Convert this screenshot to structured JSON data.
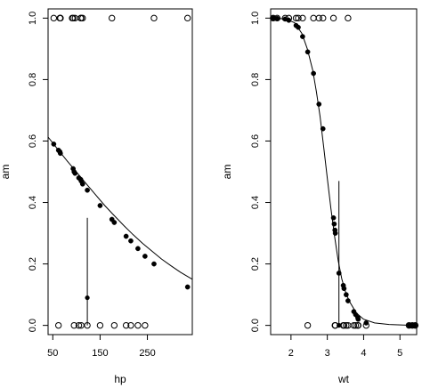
{
  "chart_data": [
    {
      "type": "scatter",
      "title": "",
      "xlabel": "hp",
      "ylabel": "am",
      "xlim": [
        50,
        335
      ],
      "ylim": [
        0,
        1
      ],
      "xticks": [
        50,
        150,
        250
      ],
      "yticks": [
        0.0,
        0.2,
        0.4,
        0.6,
        0.8,
        1.0
      ],
      "observed": {
        "x": [
          93,
          110,
          113,
          66,
          52,
          65,
          66,
          91,
          175,
          264,
          335,
          109,
          97,
          95,
          62,
          105,
          123,
          150,
          180,
          205,
          215,
          230,
          245,
          110
        ],
        "y": [
          1,
          1,
          1,
          1,
          1,
          1,
          1,
          1,
          1,
          1,
          1,
          1,
          1,
          0,
          0,
          0,
          0,
          0,
          0,
          0,
          0,
          0,
          0,
          0
        ]
      },
      "fitted": {
        "x": [
          52,
          62,
          65,
          66,
          93,
          95,
          97,
          105,
          109,
          110,
          113,
          123,
          150,
          175,
          180,
          205,
          215,
          230,
          245,
          264,
          335
        ],
        "y": [
          0.59,
          0.57,
          0.565,
          0.56,
          0.51,
          0.5,
          0.495,
          0.48,
          0.475,
          0.47,
          0.46,
          0.44,
          0.39,
          0.345,
          0.335,
          0.29,
          0.275,
          0.25,
          0.225,
          0.2,
          0.125
        ]
      },
      "curve": {
        "x": [
          40,
          60,
          80,
          100,
          120,
          140,
          160,
          180,
          200,
          220,
          240,
          260,
          280,
          300,
          320,
          345
        ],
        "y": [
          0.613,
          0.574,
          0.536,
          0.499,
          0.462,
          0.426,
          0.39,
          0.357,
          0.325,
          0.295,
          0.267,
          0.241,
          0.216,
          0.194,
          0.173,
          0.15
        ]
      },
      "marker": {
        "x": 123,
        "y": 0.09,
        "line_top": 0.35
      }
    },
    {
      "type": "scatter",
      "title": "",
      "xlabel": "wt",
      "ylabel": "am",
      "xlim": [
        1.5,
        5.4
      ],
      "ylim": [
        0,
        1
      ],
      "xticks": [
        2,
        3,
        4,
        5
      ],
      "yticks": [
        0.0,
        0.2,
        0.4,
        0.6,
        0.8,
        1.0
      ],
      "observed": {
        "x": [
          1.51,
          1.62,
          1.84,
          1.94,
          2.14,
          2.2,
          2.32,
          2.62,
          2.77,
          2.88,
          3.17,
          3.57,
          2.46,
          3.22,
          3.21,
          3.44,
          3.46,
          3.52,
          3.57,
          3.73,
          3.78,
          3.84,
          3.85,
          4.07,
          5.25,
          5.34,
          5.42
        ],
        "y": [
          1,
          1,
          1,
          1,
          1,
          1,
          1,
          1,
          1,
          1,
          1,
          1,
          0,
          0,
          0,
          0,
          0,
          0,
          0,
          0,
          0,
          0,
          0,
          0,
          0,
          0,
          0
        ]
      },
      "fitted": {
        "x": [
          1.51,
          1.62,
          1.84,
          1.94,
          2.14,
          2.2,
          2.32,
          2.46,
          2.62,
          2.77,
          2.88,
          3.17,
          3.19,
          3.21,
          3.22,
          3.32,
          3.44,
          3.46,
          3.52,
          3.57,
          3.73,
          3.78,
          3.84,
          3.85,
          4.07,
          5.25,
          5.34,
          5.42
        ],
        "y": [
          1.0,
          0.999,
          0.997,
          0.993,
          0.976,
          0.97,
          0.94,
          0.89,
          0.82,
          0.72,
          0.64,
          0.35,
          0.33,
          0.31,
          0.3,
          0.17,
          0.13,
          0.12,
          0.1,
          0.08,
          0.045,
          0.035,
          0.025,
          0.02,
          0.008,
          0.0,
          0.0,
          0.0
        ]
      },
      "curve": {
        "x": [
          1.45,
          1.7,
          1.9,
          2.1,
          2.3,
          2.45,
          2.6,
          2.7,
          2.8,
          2.9,
          3.0,
          3.1,
          3.2,
          3.3,
          3.4,
          3.5,
          3.6,
          3.8,
          4.0,
          4.3,
          4.7,
          5.1,
          5.45
        ],
        "y": [
          1.0,
          0.999,
          0.995,
          0.985,
          0.95,
          0.9,
          0.83,
          0.76,
          0.68,
          0.58,
          0.48,
          0.38,
          0.29,
          0.21,
          0.15,
          0.11,
          0.08,
          0.04,
          0.02,
          0.008,
          0.003,
          0.001,
          0.0
        ]
      },
      "marker": {
        "x": 3.32,
        "y": 0.0,
        "line_top": 0.47
      }
    }
  ]
}
